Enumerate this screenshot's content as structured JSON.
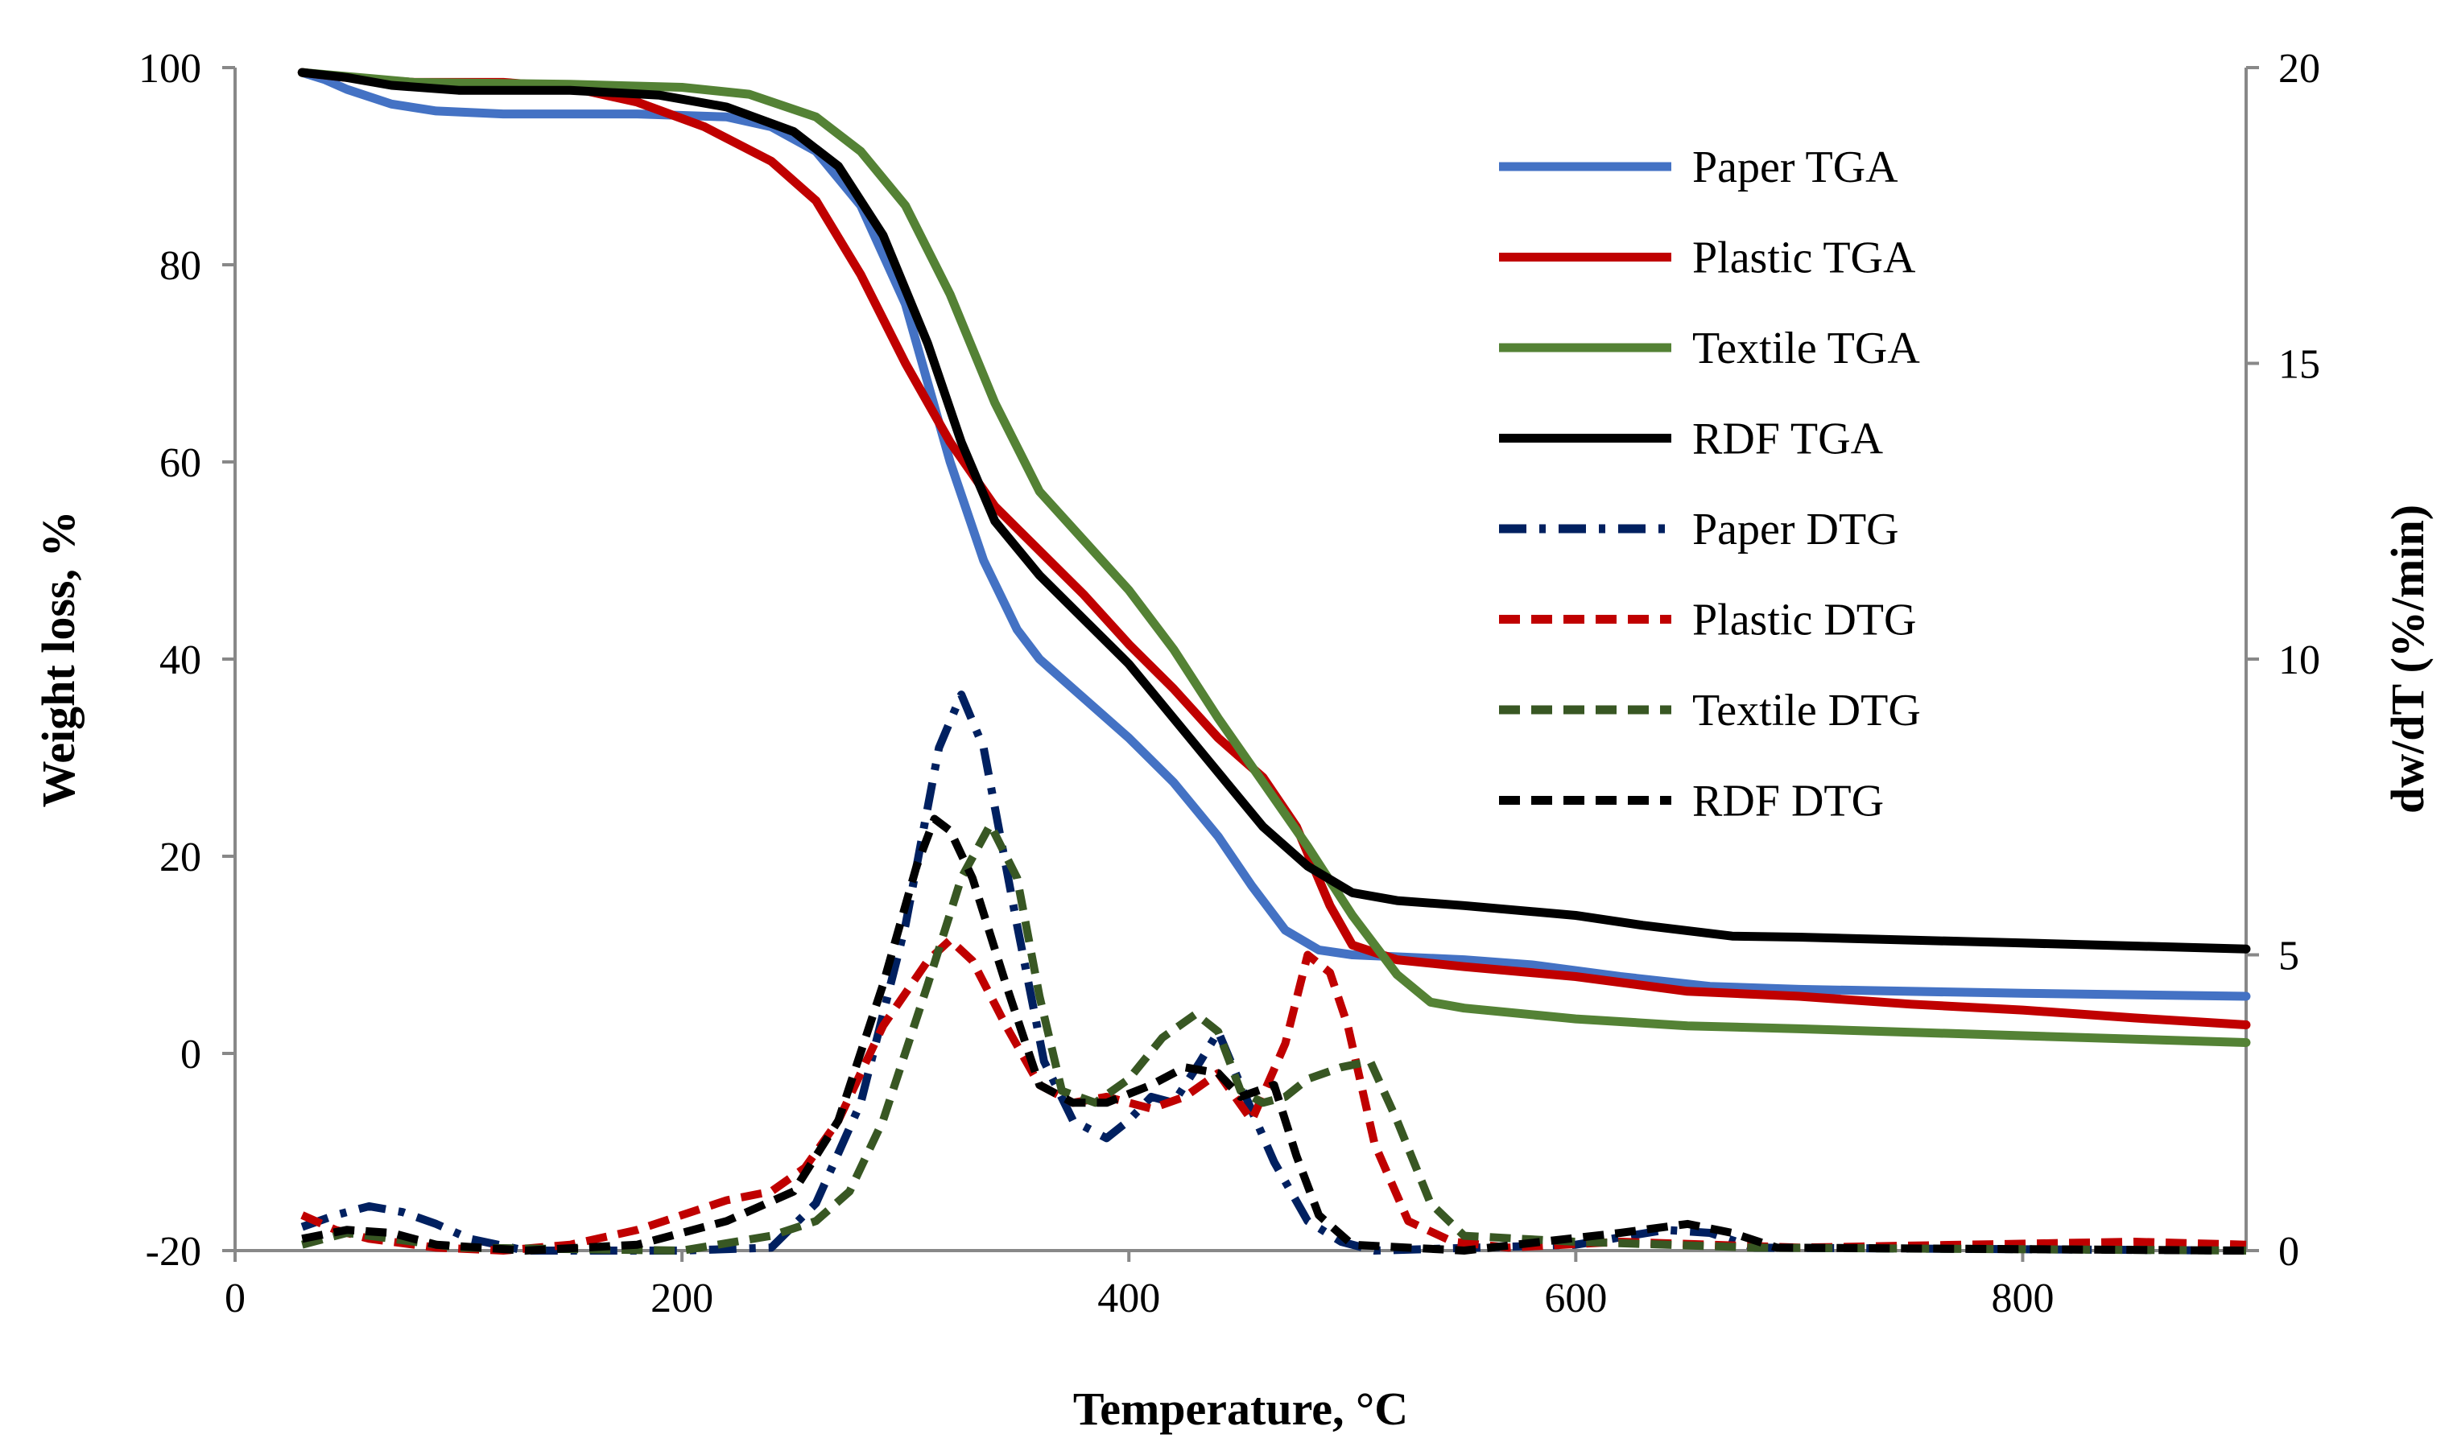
{
  "chart_data": {
    "type": "line",
    "title": "",
    "xlabel": "Temperature, °C",
    "ylabel": "Weight loss, %",
    "y2label": "dw/dT (%/min)",
    "xlim": [
      0,
      900
    ],
    "ylim": [
      -20,
      100
    ],
    "y2lim": [
      0,
      20
    ],
    "x_ticks": [
      "0",
      "200",
      "400",
      "600",
      "800"
    ],
    "y_ticks": [
      "-20",
      "0",
      "20",
      "40",
      "60",
      "80",
      "100"
    ],
    "y2_ticks": [
      "0",
      "5",
      "10",
      "15",
      "20"
    ],
    "legend_position": "top-right",
    "series": [
      {
        "name": "Paper TGA",
        "axis": "left",
        "style": "solid",
        "color": "#4472C4",
        "points": [
          [
            30,
            99.5
          ],
          [
            40,
            98.8
          ],
          [
            50,
            97.8
          ],
          [
            70,
            96.3
          ],
          [
            90,
            95.6
          ],
          [
            120,
            95.3
          ],
          [
            180,
            95.3
          ],
          [
            220,
            95
          ],
          [
            240,
            94
          ],
          [
            260,
            91.5
          ],
          [
            280,
            86
          ],
          [
            300,
            76
          ],
          [
            320,
            60
          ],
          [
            335,
            50
          ],
          [
            350,
            43
          ],
          [
            360,
            40
          ],
          [
            380,
            36
          ],
          [
            400,
            32
          ],
          [
            420,
            27.5
          ],
          [
            440,
            22
          ],
          [
            455,
            17
          ],
          [
            470,
            12.5
          ],
          [
            485,
            10.5
          ],
          [
            500,
            10
          ],
          [
            550,
            9.5
          ],
          [
            580,
            9
          ],
          [
            620,
            7.8
          ],
          [
            660,
            6.8
          ],
          [
            700,
            6.5
          ],
          [
            800,
            6.1
          ],
          [
            900,
            5.8
          ]
        ]
      },
      {
        "name": "Plastic TGA",
        "axis": "left",
        "style": "solid",
        "color": "#C00000",
        "points": [
          [
            30,
            99.5
          ],
          [
            50,
            99
          ],
          [
            80,
            98.5
          ],
          [
            120,
            98.5
          ],
          [
            150,
            98
          ],
          [
            180,
            96.5
          ],
          [
            210,
            94
          ],
          [
            240,
            90.5
          ],
          [
            260,
            86.5
          ],
          [
            280,
            79
          ],
          [
            300,
            70
          ],
          [
            320,
            62
          ],
          [
            340,
            55.5
          ],
          [
            360,
            51
          ],
          [
            380,
            46.5
          ],
          [
            400,
            41.5
          ],
          [
            420,
            37
          ],
          [
            440,
            32
          ],
          [
            460,
            28
          ],
          [
            475,
            23
          ],
          [
            490,
            15
          ],
          [
            500,
            11
          ],
          [
            520,
            9.5
          ],
          [
            550,
            8.8
          ],
          [
            600,
            7.8
          ],
          [
            650,
            6.3
          ],
          [
            700,
            5.8
          ],
          [
            750,
            5
          ],
          [
            800,
            4.4
          ],
          [
            850,
            3.6
          ],
          [
            900,
            2.9
          ]
        ]
      },
      {
        "name": "Textile TGA",
        "axis": "left",
        "style": "solid",
        "color": "#548235",
        "points": [
          [
            30,
            99.5
          ],
          [
            80,
            98.5
          ],
          [
            150,
            98.3
          ],
          [
            200,
            98
          ],
          [
            230,
            97.3
          ],
          [
            260,
            95
          ],
          [
            280,
            91.5
          ],
          [
            300,
            86
          ],
          [
            320,
            77
          ],
          [
            340,
            66
          ],
          [
            360,
            57
          ],
          [
            380,
            52
          ],
          [
            400,
            47
          ],
          [
            420,
            41
          ],
          [
            440,
            34
          ],
          [
            460,
            27.5
          ],
          [
            480,
            21
          ],
          [
            500,
            14
          ],
          [
            520,
            8
          ],
          [
            535,
            5.2
          ],
          [
            550,
            4.6
          ],
          [
            600,
            3.5
          ],
          [
            650,
            2.8
          ],
          [
            700,
            2.5
          ],
          [
            800,
            1.8
          ],
          [
            900,
            1.1
          ]
        ]
      },
      {
        "name": "RDF TGA",
        "axis": "left",
        "style": "solid",
        "color": "#000000",
        "points": [
          [
            30,
            99.5
          ],
          [
            50,
            99
          ],
          [
            70,
            98.2
          ],
          [
            100,
            97.7
          ],
          [
            150,
            97.7
          ],
          [
            190,
            97.2
          ],
          [
            220,
            96
          ],
          [
            250,
            93.5
          ],
          [
            270,
            90
          ],
          [
            290,
            83
          ],
          [
            310,
            72
          ],
          [
            325,
            62
          ],
          [
            340,
            54
          ],
          [
            360,
            48.5
          ],
          [
            380,
            44
          ],
          [
            400,
            39.5
          ],
          [
            420,
            34
          ],
          [
            440,
            28.5
          ],
          [
            460,
            23
          ],
          [
            480,
            19
          ],
          [
            500,
            16.3
          ],
          [
            520,
            15.5
          ],
          [
            550,
            15
          ],
          [
            600,
            14
          ],
          [
            630,
            13
          ],
          [
            670,
            11.9
          ],
          [
            700,
            11.8
          ],
          [
            800,
            11.2
          ],
          [
            900,
            10.6
          ]
        ]
      },
      {
        "name": "Paper DTG",
        "axis": "right",
        "style": "dash-dot",
        "color": "#002060",
        "points": [
          [
            30,
            0.4
          ],
          [
            45,
            0.6
          ],
          [
            60,
            0.75
          ],
          [
            75,
            0.65
          ],
          [
            90,
            0.45
          ],
          [
            105,
            0.2
          ],
          [
            130,
            0
          ],
          [
            200,
            0
          ],
          [
            240,
            0.05
          ],
          [
            260,
            0.8
          ],
          [
            280,
            2.5
          ],
          [
            300,
            5.5
          ],
          [
            315,
            8.5
          ],
          [
            325,
            9.4
          ],
          [
            335,
            8.5
          ],
          [
            350,
            5.5
          ],
          [
            362,
            3.2
          ],
          [
            375,
            2.2
          ],
          [
            390,
            1.9
          ],
          [
            400,
            2.2
          ],
          [
            410,
            2.6
          ],
          [
            420,
            2.5
          ],
          [
            432,
            3.2
          ],
          [
            440,
            3.7
          ],
          [
            450,
            2.8
          ],
          [
            465,
            1.5
          ],
          [
            480,
            0.5
          ],
          [
            495,
            0.15
          ],
          [
            510,
            0
          ],
          [
            600,
            0.1
          ],
          [
            640,
            0.35
          ],
          [
            660,
            0.3
          ],
          [
            680,
            0.05
          ],
          [
            900,
            0
          ]
        ]
      },
      {
        "name": "Plastic DTG",
        "axis": "right",
        "style": "dashed",
        "color": "#C00000",
        "points": [
          [
            30,
            0.6
          ],
          [
            45,
            0.35
          ],
          [
            60,
            0.2
          ],
          [
            90,
            0.05
          ],
          [
            120,
            0
          ],
          [
            150,
            0.1
          ],
          [
            180,
            0.35
          ],
          [
            200,
            0.6
          ],
          [
            220,
            0.85
          ],
          [
            240,
            1.0
          ],
          [
            255,
            1.4
          ],
          [
            270,
            2.2
          ],
          [
            290,
            3.8
          ],
          [
            310,
            4.9
          ],
          [
            320,
            5.25
          ],
          [
            330,
            4.9
          ],
          [
            345,
            3.8
          ],
          [
            360,
            2.8
          ],
          [
            375,
            2.5
          ],
          [
            390,
            2.6
          ],
          [
            410,
            2.4
          ],
          [
            425,
            2.6
          ],
          [
            440,
            3.0
          ],
          [
            455,
            2.2
          ],
          [
            470,
            3.5
          ],
          [
            480,
            5.0
          ],
          [
            490,
            4.7
          ],
          [
            498,
            3.8
          ],
          [
            510,
            1.8
          ],
          [
            525,
            0.5
          ],
          [
            545,
            0.15
          ],
          [
            570,
            0.05
          ],
          [
            620,
            0.15
          ],
          [
            700,
            0.05
          ],
          [
            850,
            0.15
          ],
          [
            900,
            0.1
          ]
        ]
      },
      {
        "name": "Textile DTG",
        "axis": "right",
        "style": "dashed",
        "color": "#385723",
        "points": [
          [
            30,
            0.1
          ],
          [
            50,
            0.3
          ],
          [
            70,
            0.2
          ],
          [
            100,
            0.05
          ],
          [
            200,
            0
          ],
          [
            240,
            0.25
          ],
          [
            260,
            0.5
          ],
          [
            275,
            1.0
          ],
          [
            290,
            2.2
          ],
          [
            310,
            4.5
          ],
          [
            325,
            6.3
          ],
          [
            338,
            7.2
          ],
          [
            350,
            6.3
          ],
          [
            360,
            4.3
          ],
          [
            370,
            2.7
          ],
          [
            385,
            2.5
          ],
          [
            400,
            2.9
          ],
          [
            415,
            3.6
          ],
          [
            430,
            4.0
          ],
          [
            440,
            3.7
          ],
          [
            450,
            2.7
          ],
          [
            460,
            2.5
          ],
          [
            470,
            2.6
          ],
          [
            480,
            2.9
          ],
          [
            495,
            3.1
          ],
          [
            508,
            3.2
          ],
          [
            520,
            2.2
          ],
          [
            535,
            0.8
          ],
          [
            550,
            0.25
          ],
          [
            600,
            0.15
          ],
          [
            680,
            0.05
          ],
          [
            900,
            0
          ]
        ]
      },
      {
        "name": "RDF DTG",
        "axis": "right",
        "style": "dashed",
        "color": "#000000",
        "points": [
          [
            30,
            0.2
          ],
          [
            50,
            0.35
          ],
          [
            70,
            0.3
          ],
          [
            90,
            0.1
          ],
          [
            130,
            0
          ],
          [
            180,
            0.1
          ],
          [
            220,
            0.5
          ],
          [
            250,
            1.0
          ],
          [
            270,
            2.2
          ],
          [
            290,
            4.5
          ],
          [
            305,
            6.5
          ],
          [
            313,
            7.3
          ],
          [
            320,
            7.1
          ],
          [
            330,
            6.3
          ],
          [
            345,
            4.5
          ],
          [
            360,
            2.8
          ],
          [
            375,
            2.5
          ],
          [
            390,
            2.5
          ],
          [
            410,
            2.8
          ],
          [
            425,
            3.1
          ],
          [
            440,
            3.0
          ],
          [
            450,
            2.6
          ],
          [
            465,
            2.8
          ],
          [
            475,
            1.6
          ],
          [
            485,
            0.6
          ],
          [
            500,
            0.1
          ],
          [
            550,
            0
          ],
          [
            620,
            0.3
          ],
          [
            650,
            0.45
          ],
          [
            670,
            0.3
          ],
          [
            690,
            0.05
          ],
          [
            900,
            0
          ]
        ]
      }
    ]
  }
}
